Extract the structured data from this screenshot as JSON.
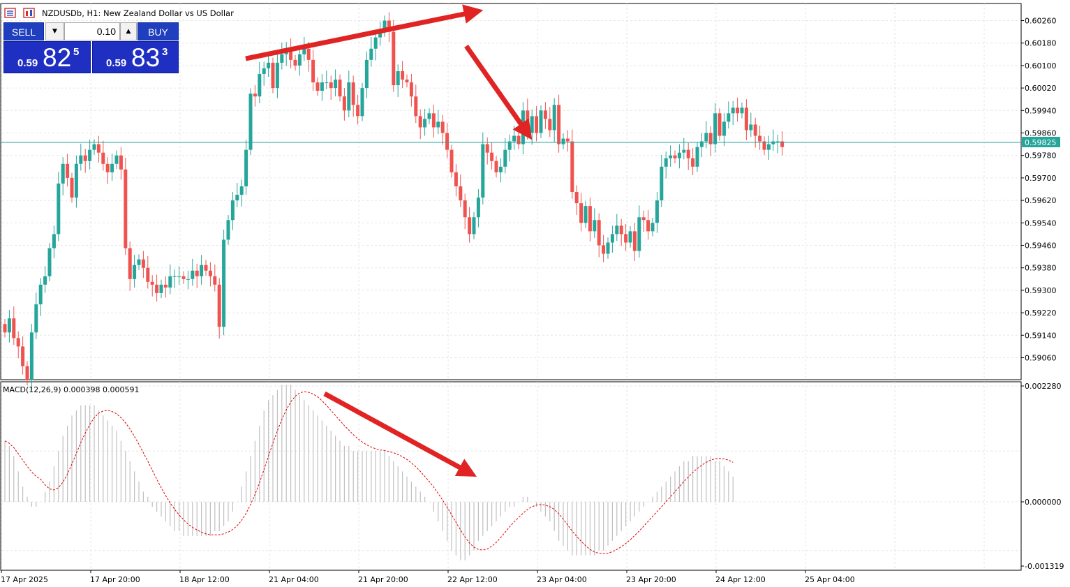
{
  "window": {
    "title": "NZDUSDb, H1:  New Zealand Dollar vs US Dollar"
  },
  "trade_panel": {
    "sell_label": "SELL",
    "buy_label": "BUY",
    "lot_value": "0.10",
    "sell_price": {
      "small": "0.59",
      "big": "82",
      "sup": "5"
    },
    "buy_price": {
      "small": "0.59",
      "big": "83",
      "sup": "3"
    }
  },
  "colors": {
    "bull": "#26a69a",
    "bear": "#ef5350",
    "grid": "#e6e6e6",
    "current_price_line": "#26a69a",
    "macd_histogram": "#c0c0c0",
    "macd_signal": "#e00000",
    "annotation_arrow": "#e02424",
    "trade_blue": "#1e2fc2"
  },
  "price_axis": {
    "labels": [
      "0.60260",
      "0.60180",
      "0.60100",
      "0.60020",
      "0.59940",
      "0.59860",
      "0.59780",
      "0.59700",
      "0.59620",
      "0.59540",
      "0.59460",
      "0.59380",
      "0.59300",
      "0.59220",
      "0.59140",
      "0.59060"
    ],
    "current_price": "0.59825"
  },
  "macd": {
    "label": "MACD(12,26,9) 0.000398 0.000591",
    "axis_labels": [
      "0.002280",
      "0.000000",
      "-0.001319"
    ]
  },
  "time_axis": {
    "labels": [
      "17 Apr 2025",
      "17 Apr 20:00",
      "18 Apr 12:00",
      "21 Apr 04:00",
      "21 Apr 20:00",
      "22 Apr 12:00",
      "23 Apr 04:00",
      "23 Apr 20:00",
      "24 Apr 12:00",
      "25 Apr 04:00"
    ]
  },
  "chart_data": {
    "type": "candlestick",
    "symbol": "NZDUSDb",
    "timeframe": "H1",
    "title": "NZDUSDb, H1:  New Zealand Dollar vs US Dollar",
    "ylim": [
      0.5903,
      0.603
    ],
    "current_price": 0.59825,
    "close": [
      0.5915,
      0.592,
      0.5913,
      0.591,
      0.5903,
      0.5898,
      0.5915,
      0.5925,
      0.5932,
      0.5935,
      0.5945,
      0.595,
      0.5968,
      0.5975,
      0.597,
      0.5963,
      0.5975,
      0.5978,
      0.5976,
      0.598,
      0.5982,
      0.5979,
      0.5975,
      0.5972,
      0.5975,
      0.5978,
      0.5973,
      0.5945,
      0.5934,
      0.5939,
      0.5941,
      0.5938,
      0.5933,
      0.5932,
      0.5929,
      0.5932,
      0.5931,
      0.5935,
      0.5935,
      0.5935,
      0.5934,
      0.5934,
      0.5937,
      0.5935,
      0.5939,
      0.5937,
      0.5935,
      0.5932,
      0.5917,
      0.5948,
      0.5955,
      0.5962,
      0.5964,
      0.5967,
      0.598,
      0.6,
      0.5999,
      0.6007,
      0.6009,
      0.6011,
      0.6002,
      0.6011,
      0.6014,
      0.6016,
      0.6012,
      0.601,
      0.6014,
      0.6016,
      0.6012,
      0.6004,
      0.6001,
      0.6004,
      0.6004,
      0.6002,
      0.6005,
      0.5999,
      0.5994,
      0.6004,
      0.5996,
      0.5992,
      0.6002,
      0.6012,
      0.6016,
      0.602,
      0.6022,
      0.6026,
      0.6022,
      0.6003,
      0.6008,
      0.6005,
      0.6004,
      0.5999,
      0.5992,
      0.5988,
      0.5991,
      0.5993,
      0.5988,
      0.599,
      0.5986,
      0.598,
      0.5972,
      0.5967,
      0.5962,
      0.5956,
      0.595,
      0.5956,
      0.5963,
      0.5982,
      0.5979,
      0.5976,
      0.5972,
      0.5974,
      0.598,
      0.5983,
      0.5985,
      0.5982,
      0.5994,
      0.5986,
      0.5992,
      0.5986,
      0.5994,
      0.5991,
      0.5987,
      0.5996,
      0.5982,
      0.5984,
      0.5983,
      0.5965,
      0.5961,
      0.5954,
      0.596,
      0.5951,
      0.5955,
      0.5946,
      0.5943,
      0.5947,
      0.595,
      0.5953,
      0.595,
      0.5947,
      0.5951,
      0.5944,
      0.5956,
      0.5955,
      0.5951,
      0.5954,
      0.5962,
      0.5974,
      0.5977,
      0.5978,
      0.5977,
      0.5979,
      0.598,
      0.5977,
      0.5974,
      0.5981,
      0.5983,
      0.5986,
      0.5982,
      0.5993,
      0.5985,
      0.599,
      0.5993,
      0.5995,
      0.5993,
      0.5995,
      0.5987,
      0.5989,
      0.5985,
      0.5983,
      0.598,
      0.5982,
      0.5983,
      0.5983,
      0.5981
    ],
    "macd": {
      "params": "12,26,9",
      "main": 0.000398,
      "signal": 0.000591,
      "ylim": [
        -0.001319,
        0.00228
      ],
      "histogram": [
        0.0012,
        0.0011,
        0.0009,
        0.0006,
        0.0003,
        0.0001,
        -0.0001,
        -0.0001,
        0.0,
        0.0002,
        0.0004,
        0.0007,
        0.001,
        0.0013,
        0.0015,
        0.0017,
        0.0018,
        0.0019,
        0.0019,
        0.0019,
        0.0019,
        0.0018,
        0.0017,
        0.0016,
        0.0015,
        0.0014,
        0.0012,
        0.001,
        0.0008,
        0.0006,
        0.0004,
        0.0002,
        0.0001,
        -0.0001,
        -0.0002,
        -0.0003,
        -0.0004,
        -0.0005,
        -0.0006,
        -0.0006,
        -0.0007,
        -0.0007,
        -0.0007,
        -0.0007,
        -0.0007,
        -0.0007,
        -0.0007,
        -0.0006,
        -0.0006,
        -0.0005,
        -0.0004,
        -0.0002,
        0.0,
        0.0003,
        0.0006,
        0.0009,
        0.0012,
        0.0015,
        0.0018,
        0.002,
        0.0021,
        0.0022,
        0.0023,
        0.0023,
        0.0023,
        0.0022,
        0.0021,
        0.002,
        0.0019,
        0.0018,
        0.0017,
        0.0016,
        0.0015,
        0.0014,
        0.0013,
        0.0012,
        0.0011,
        0.0011,
        0.001,
        0.001,
        0.001,
        0.001,
        0.001,
        0.001,
        0.001,
        0.001,
        0.0009,
        0.0008,
        0.0007,
        0.0006,
        0.0005,
        0.0004,
        0.0003,
        0.0002,
        0.0001,
        0.0,
        -0.0002,
        -0.0004,
        -0.0006,
        -0.0008,
        -0.001,
        -0.0011,
        -0.0012,
        -0.0012,
        -0.0011,
        -0.001,
        -0.0008,
        -0.0007,
        -0.0006,
        -0.0005,
        -0.0004,
        -0.0003,
        -0.0002,
        -0.0001,
        -0.0001,
        0.0,
        0.0001,
        0.0001,
        0.0,
        -0.0001,
        -0.0002,
        -0.0003,
        -0.0004,
        -0.0006,
        -0.0008,
        -0.0009,
        -0.001,
        -0.0011,
        -0.0011,
        -0.0011,
        -0.0011,
        -0.0011,
        -0.0011,
        -0.001,
        -0.001,
        -0.0009,
        -0.0008,
        -0.0007,
        -0.0006,
        -0.0005,
        -0.0004,
        -0.0003,
        -0.0002,
        -0.0001,
        0.0,
        0.0001,
        0.0002,
        0.0003,
        0.0004,
        0.0005,
        0.0006,
        0.0007,
        0.0008,
        0.0008,
        0.0009,
        0.0009,
        0.0009,
        0.0009,
        0.0009,
        0.0008,
        0.0008,
        0.0007,
        0.0006,
        0.0005
      ]
    },
    "annotations": [
      {
        "kind": "arrow",
        "pane": "price",
        "direction": "up-right"
      },
      {
        "kind": "arrow",
        "pane": "price",
        "direction": "down-right"
      },
      {
        "kind": "arrow",
        "pane": "macd",
        "direction": "down-right"
      }
    ]
  }
}
